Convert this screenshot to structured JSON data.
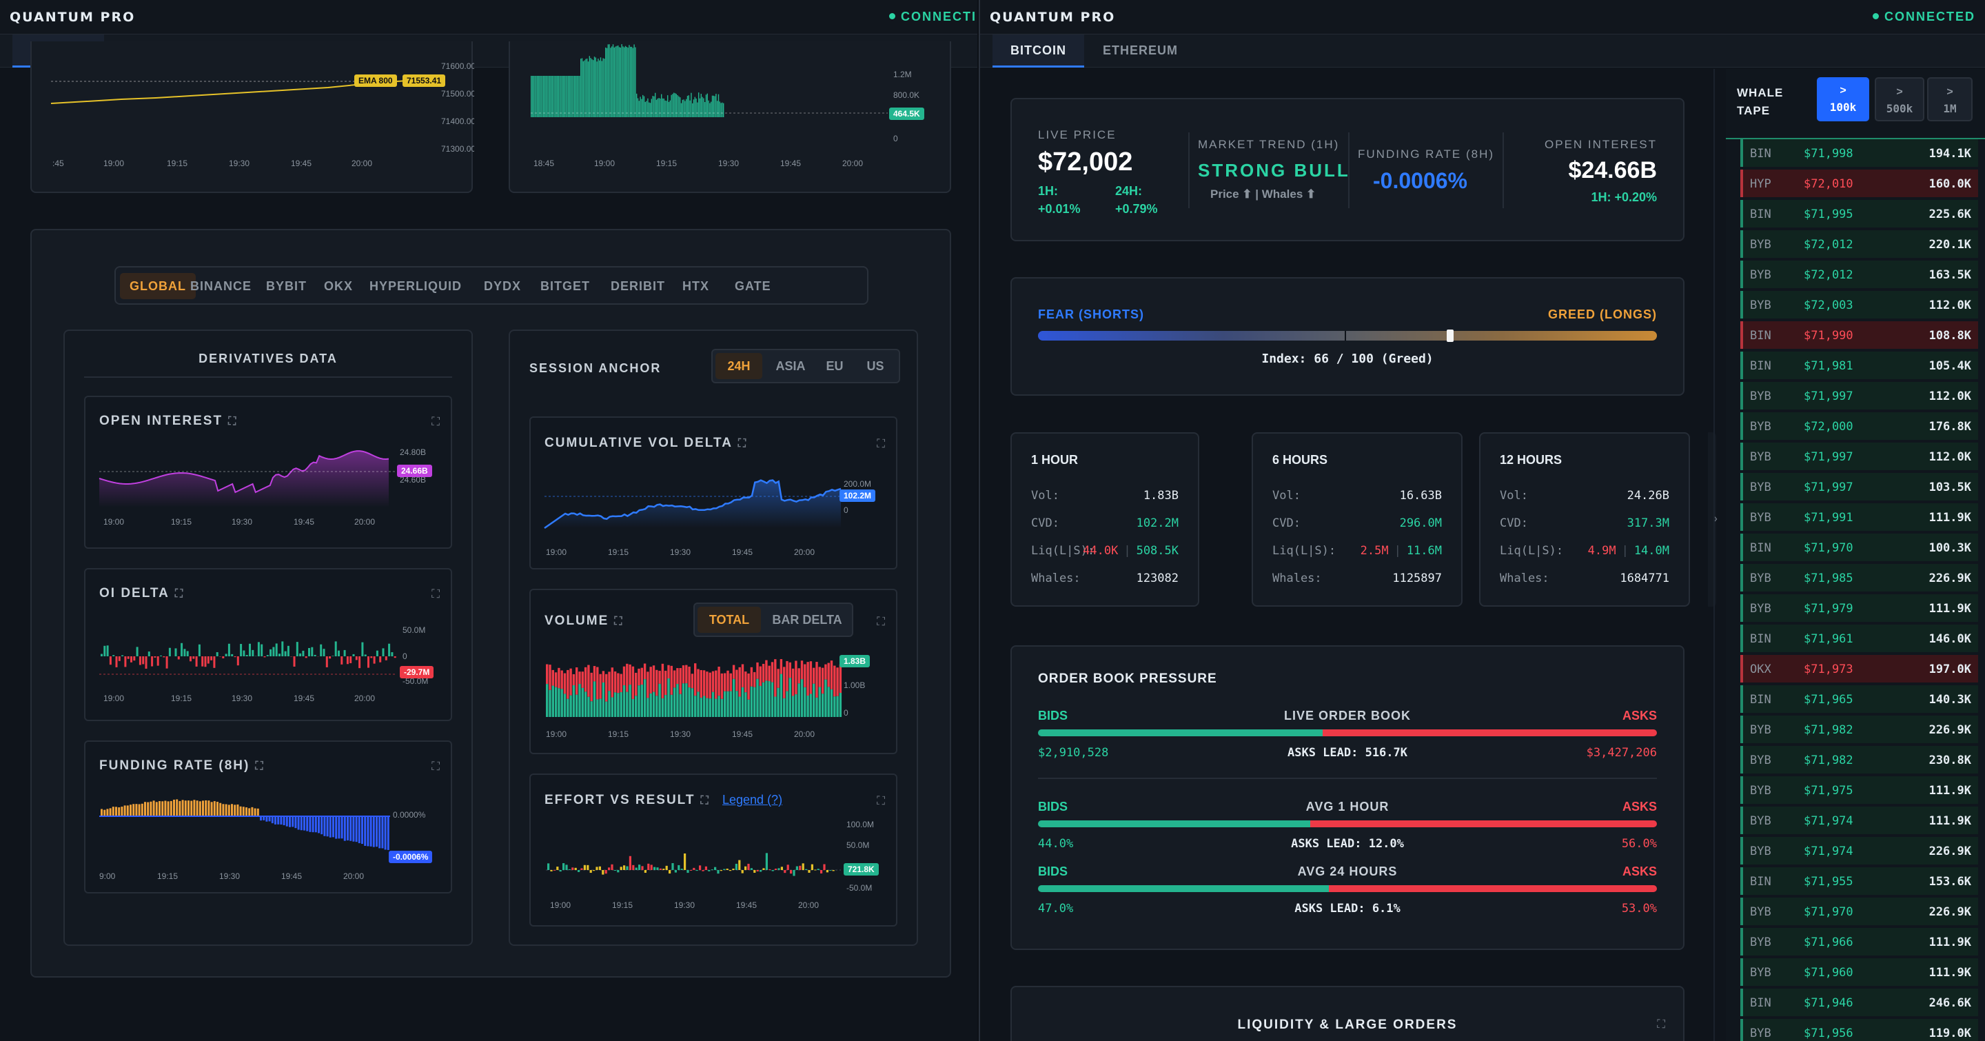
{
  "app": {
    "brand": "QUANTUM PRO",
    "status": "CONNECTED",
    "status_left": "CONNECTI",
    "tabs": [
      "BITCOIN",
      "ETHEREUM"
    ]
  },
  "left": {
    "top_price": {
      "ema_label": "EMA 800",
      "ema_value": "71553.41",
      "y_ticks": [
        "71600.00",
        "71500.00",
        "71400.00",
        "71300.00"
      ],
      "x_ticks": [
        ":45",
        "19:00",
        "19:15",
        "19:30",
        "19:45",
        "20:00"
      ]
    },
    "top_volume": {
      "y_ticks": [
        "1.2M",
        "800.0K",
        "0"
      ],
      "badge": "464.5K",
      "x_ticks": [
        "18:45",
        "19:00",
        "19:15",
        "19:30",
        "19:45",
        "20:00"
      ]
    },
    "exchanges": [
      "GLOBAL",
      "BINANCE",
      "BYBIT",
      "OKX",
      "HYPERLIQUID",
      "DYDX",
      "BITGET",
      "DERIBIT",
      "HTX",
      "GATE"
    ],
    "derivatives": {
      "title": "DERIVATIVES DATA",
      "oi": {
        "title": "OPEN INTEREST",
        "ticks": [
          "24.80B",
          "24.60B"
        ],
        "badge": "24.66B",
        "x_ticks": [
          "19:00",
          "19:15",
          "19:30",
          "19:45",
          "20:00"
        ]
      },
      "oid": {
        "title": "OI DELTA",
        "ticks": [
          "50.0M",
          "0",
          "-50.0M"
        ],
        "badge": "-29.7M",
        "x_ticks": [
          "19:00",
          "19:15",
          "19:30",
          "19:45",
          "20:00"
        ]
      },
      "fr": {
        "title": "FUNDING RATE (8H)",
        "ticks": [
          "0.0000%"
        ],
        "badge": "-0.0006%",
        "x_ticks": [
          "9:00",
          "19:15",
          "19:30",
          "19:45",
          "20:00"
        ]
      }
    },
    "session": {
      "title": "SESSION ANCHOR",
      "options": [
        "24H",
        "ASIA",
        "EU",
        "US"
      ],
      "cvd": {
        "title": "CUMULATIVE VOL DELTA",
        "ticks": [
          "200.0M",
          "0"
        ],
        "badge": "102.2M",
        "x_ticks": [
          "19:00",
          "19:15",
          "19:30",
          "19:45",
          "20:00"
        ]
      },
      "vol": {
        "title": "VOLUME",
        "modes": [
          "TOTAL",
          "BAR DELTA"
        ],
        "ticks": [
          "1.00B",
          "0"
        ],
        "badge": "1.83B",
        "x_ticks": [
          "19:00",
          "19:15",
          "19:30",
          "19:45",
          "20:00"
        ]
      },
      "evr": {
        "title": "EFFORT VS RESULT",
        "legend": "Legend (?)",
        "ticks": [
          "100.0M",
          "50.0M",
          "-50.0M"
        ],
        "badge": "721.8K",
        "x_ticks": [
          "19:00",
          "19:15",
          "19:30",
          "19:45",
          "20:00"
        ]
      }
    }
  },
  "right": {
    "live": {
      "label": "LIVE PRICE",
      "price": "$72,002",
      "h1_label": "1H:",
      "h1": "+0.01%",
      "h24_label": "24H:",
      "h24": "+0.79%",
      "trend_label": "MARKET TREND (1H)",
      "trend": "STRONG BULL",
      "trend_sub": "Price ⬆ | Whales ⬆",
      "funding_label": "FUNDING RATE (8H)",
      "funding": "-0.0006%",
      "oi_label": "OPEN INTEREST",
      "oi": "$24.66B",
      "oi_sub": "1H: +0.20%"
    },
    "sentiment": {
      "left": "FEAR (SHORTS)",
      "right": "GREED (LONGS)",
      "index": "Index: 66 / 100 (Greed)",
      "value": 0.66
    },
    "periods": [
      {
        "title": "1 HOUR",
        "vol": "1.83B",
        "cvd": "102.2M",
        "liq_l": "44.0K",
        "liq_s": "508.5K",
        "whales": "123082"
      },
      {
        "title": "6 HOURS",
        "vol": "16.63B",
        "cvd": "296.0M",
        "liq_l": "2.5M",
        "liq_s": "11.6M",
        "whales": "1125897"
      },
      {
        "title": "12 HOURS",
        "vol": "24.26B",
        "cvd": "317.3M",
        "liq_l": "4.9M",
        "liq_s": "14.0M",
        "whales": "1684771"
      }
    ],
    "period_labels": {
      "vol": "Vol:",
      "cvd": "CVD:",
      "liq": "Liq(L|S):",
      "whales": "Whales:",
      "sep": "|"
    },
    "orderbook": {
      "title": "ORDER BOOK PRESSURE",
      "bids": "BIDS",
      "asks": "ASKS",
      "rows": [
        {
          "label": "LIVE ORDER BOOK",
          "left": "$2,910,528",
          "center": "ASKS LEAD: 516.7K",
          "right": "$3,427,206",
          "bid_frac": 0.46
        },
        {
          "label": "AVG 1 HOUR",
          "left": "44.0%",
          "center": "ASKS LEAD: 12.0%",
          "right": "56.0%",
          "bid_frac": 0.44
        },
        {
          "label": "AVG 24 HOURS",
          "left": "47.0%",
          "center": "ASKS LEAD: 6.1%",
          "right": "53.0%",
          "bid_frac": 0.47
        }
      ]
    },
    "liquidity": {
      "title": "LIQUIDITY & LARGE ORDERS"
    },
    "whale": {
      "title1": "WHALE",
      "title2": "TAPE",
      "filters": [
        {
          "a": ">",
          "b": "100k"
        },
        {
          "a": ">",
          "b": "500k"
        },
        {
          "a": ">",
          "b": "1M"
        }
      ],
      "trades": [
        [
          "BIN",
          "$71,998",
          "194.1K",
          "buy"
        ],
        [
          "HYP",
          "$72,010",
          "160.0K",
          "sell"
        ],
        [
          "BIN",
          "$71,995",
          "225.6K",
          "buy"
        ],
        [
          "BYB",
          "$72,012",
          "220.1K",
          "buy"
        ],
        [
          "BYB",
          "$72,012",
          "163.5K",
          "buy"
        ],
        [
          "BYB",
          "$72,003",
          "112.0K",
          "buy"
        ],
        [
          "BIN",
          "$71,990",
          "108.8K",
          "sell"
        ],
        [
          "BIN",
          "$71,981",
          "105.4K",
          "buy"
        ],
        [
          "BYB",
          "$71,997",
          "112.0K",
          "buy"
        ],
        [
          "BYB",
          "$72,000",
          "176.8K",
          "buy"
        ],
        [
          "BYB",
          "$71,997",
          "112.0K",
          "buy"
        ],
        [
          "BYB",
          "$71,997",
          "103.5K",
          "buy"
        ],
        [
          "BYB",
          "$71,991",
          "111.9K",
          "buy"
        ],
        [
          "BIN",
          "$71,970",
          "100.3K",
          "buy"
        ],
        [
          "BYB",
          "$71,985",
          "226.9K",
          "buy"
        ],
        [
          "BYB",
          "$71,979",
          "111.9K",
          "buy"
        ],
        [
          "BIN",
          "$71,961",
          "146.0K",
          "buy"
        ],
        [
          "OKX",
          "$71,973",
          "197.0K",
          "sell"
        ],
        [
          "BIN",
          "$71,965",
          "140.3K",
          "buy"
        ],
        [
          "BYB",
          "$71,982",
          "226.9K",
          "buy"
        ],
        [
          "BYB",
          "$71,982",
          "230.8K",
          "buy"
        ],
        [
          "BYB",
          "$71,975",
          "111.9K",
          "buy"
        ],
        [
          "BYB",
          "$71,974",
          "111.9K",
          "buy"
        ],
        [
          "BYB",
          "$71,974",
          "226.9K",
          "buy"
        ],
        [
          "BIN",
          "$71,955",
          "153.6K",
          "buy"
        ],
        [
          "BYB",
          "$71,970",
          "226.9K",
          "buy"
        ],
        [
          "BYB",
          "$71,966",
          "111.9K",
          "buy"
        ],
        [
          "BYB",
          "$71,960",
          "111.9K",
          "buy"
        ],
        [
          "BIN",
          "$71,946",
          "246.6K",
          "buy"
        ],
        [
          "BYB",
          "$71,956",
          "119.0K",
          "buy"
        ]
      ]
    }
  },
  "colors": {
    "green": "#2bd4a4",
    "red": "#ff4d57",
    "blue": "#2f7bff",
    "orange": "#f0a23a",
    "purple": "#c040e0"
  }
}
